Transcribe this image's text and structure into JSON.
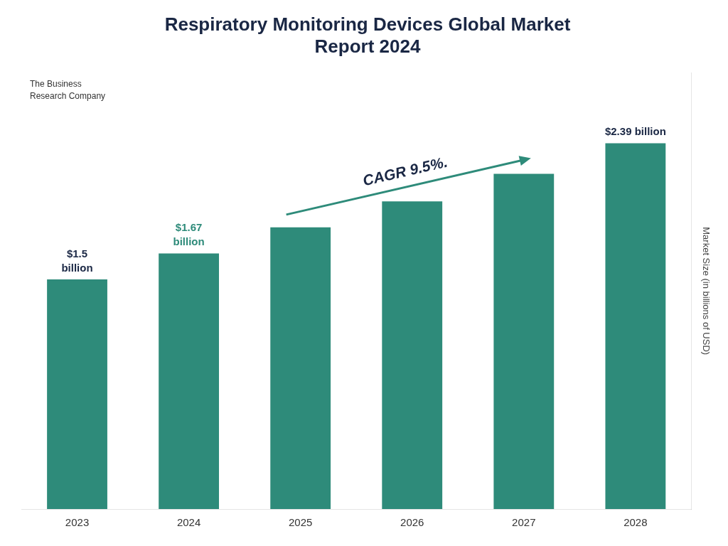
{
  "chart_data": {
    "type": "bar",
    "title": "Respiratory Monitoring Devices Global Market\nReport 2024",
    "title_color": "#1a2744",
    "categories": [
      "2023",
      "2024",
      "2025",
      "2026",
      "2027",
      "2028"
    ],
    "values": [
      1.5,
      1.67,
      1.84,
      2.01,
      2.19,
      2.39
    ],
    "color": "#2e8b7a",
    "y_label": "Market Size (in billions of USD)",
    "ylim": [
      0,
      2.85
    ],
    "grid": false,
    "tick_labels": "x",
    "annotations": [
      {
        "text": "$1.5\nbillion",
        "category": "2023",
        "color": "#1a2744"
      },
      {
        "text": "$1.67\nbillion",
        "category": "2024",
        "color": "#2e8b7a"
      },
      {
        "text": "$2.39 billion",
        "category": "2028",
        "color": "#1a2744"
      },
      {
        "text": "CAGR 9.5%.",
        "color": "#1a2744",
        "arrow": {
          "from": "2025",
          "to": "2027",
          "color": "#2e8b7a"
        }
      },
      {
        "text": "The Business\nResearch Company",
        "color": "#333333"
      }
    ]
  }
}
